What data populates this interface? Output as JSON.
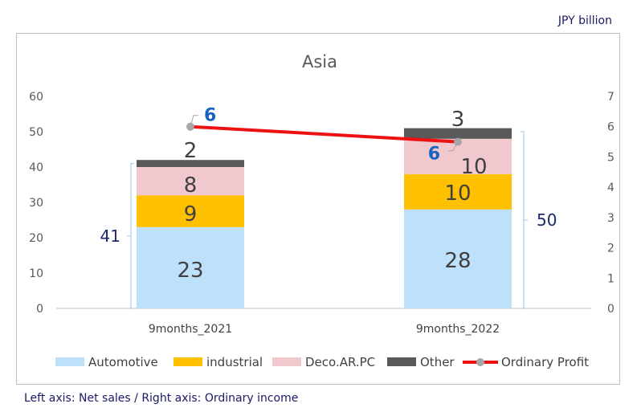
{
  "unit_label": "JPY  billion",
  "footnote": "Left axis: Net sales / Right axis: Ordinary income",
  "chart_data": {
    "type": "bar",
    "stacked": true,
    "title": "Asia",
    "categories": [
      "9months_2021",
      "9months_2022"
    ],
    "series": [
      {
        "name": "Automotive",
        "values": [
          23,
          28
        ],
        "color": "#bde0fb"
      },
      {
        "name": "industrial",
        "values": [
          9,
          10
        ],
        "color": "#ffc000"
      },
      {
        "name": "Deco.AR.PC",
        "values": [
          8,
          10
        ],
        "color": "#f2c8cf"
      },
      {
        "name": "Other",
        "values": [
          2,
          3
        ],
        "color": "#595959"
      }
    ],
    "totals": [
      41,
      50
    ],
    "line_series": {
      "name": "Ordinary Profit",
      "values": [
        6,
        5.5
      ],
      "labels": [
        "6",
        "6"
      ],
      "color": "#ee1111",
      "marker_color": "#a6a6a6"
    },
    "left_axis": {
      "ylim": [
        0,
        60
      ],
      "ticks": [
        "0",
        "10",
        "20",
        "30",
        "40",
        "50",
        "60"
      ]
    },
    "right_axis": {
      "ylim": [
        0,
        7
      ],
      "ticks": [
        "0",
        "1",
        "2",
        "3",
        "4",
        "5",
        "6",
        "7"
      ]
    },
    "legend_position": "bottom",
    "grid": false
  }
}
